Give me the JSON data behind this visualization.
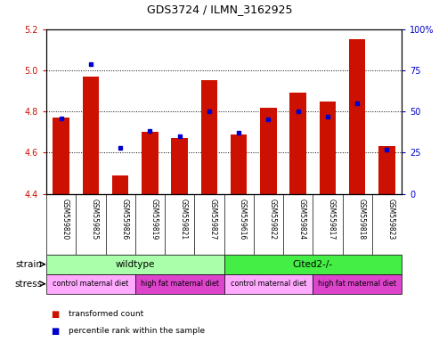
{
  "title": "GDS3724 / ILMN_3162925",
  "samples": [
    "GSM559820",
    "GSM559825",
    "GSM559826",
    "GSM559819",
    "GSM559821",
    "GSM559827",
    "GSM559616",
    "GSM559822",
    "GSM559824",
    "GSM559817",
    "GSM559818",
    "GSM559823"
  ],
  "transformed_counts": [
    4.77,
    4.97,
    4.49,
    4.7,
    4.67,
    4.95,
    4.69,
    4.82,
    4.89,
    4.85,
    5.15,
    4.63
  ],
  "percentile_ranks": [
    46,
    79,
    28,
    38,
    35,
    50,
    37,
    45,
    50,
    47,
    55,
    27
  ],
  "ylim_left": [
    4.4,
    5.2
  ],
  "ylim_right": [
    0,
    100
  ],
  "yticks_left": [
    4.4,
    4.6,
    4.8,
    5.0,
    5.2
  ],
  "yticks_right": [
    0,
    25,
    50,
    75,
    100
  ],
  "bar_color": "#cc1100",
  "dot_color": "#0000cc",
  "strain_labels": [
    {
      "label": "wildtype",
      "start": 0,
      "end": 6,
      "color": "#aaffaa"
    },
    {
      "label": "Cited2-/-",
      "start": 6,
      "end": 12,
      "color": "#44ee44"
    }
  ],
  "stress_groups": [
    {
      "label": "control maternal diet",
      "start": 0,
      "end": 3,
      "color": "#ffaaff"
    },
    {
      "label": "high fat maternal diet",
      "start": 3,
      "end": 6,
      "color": "#dd44cc"
    },
    {
      "label": "control maternal diet",
      "start": 6,
      "end": 9,
      "color": "#ffaaff"
    },
    {
      "label": "high fat maternal diet",
      "start": 9,
      "end": 12,
      "color": "#dd44cc"
    }
  ],
  "legend_items": [
    {
      "label": "transformed count",
      "color": "#cc1100"
    },
    {
      "label": "percentile rank within the sample",
      "color": "#0000cc"
    }
  ],
  "tick_label_area_color": "#c8c8c8"
}
